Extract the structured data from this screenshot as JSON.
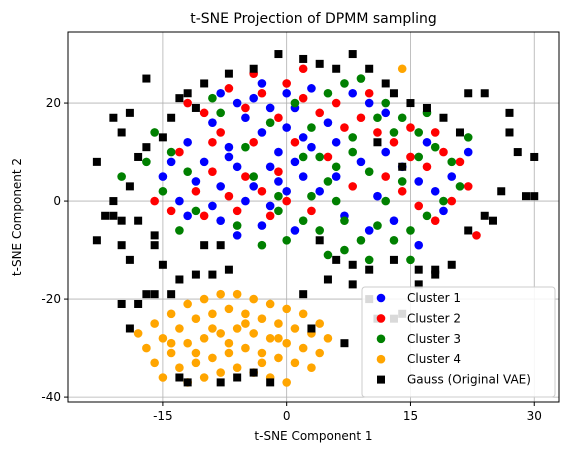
{
  "chart_data": {
    "type": "scatter",
    "title": "t-SNE Projection of DPMM sampling",
    "xlabel": "t-SNE Component 1",
    "ylabel": "t-SNE Component 2",
    "xlim": [
      -26.5,
      33.0
    ],
    "ylim": [
      -41.0,
      34.5
    ],
    "xticks": [
      -15,
      0,
      15,
      30
    ],
    "yticks": [
      -40,
      -20,
      0,
      20
    ],
    "grid": true,
    "legend_position": "lower-right",
    "series": [
      {
        "name": "Cluster 1",
        "color": "#0000ff",
        "marker": "circle",
        "points": [
          [
            -8,
            22
          ],
          [
            -6,
            20
          ],
          [
            -4,
            21
          ],
          [
            -2,
            19
          ],
          [
            0,
            22
          ],
          [
            1,
            19
          ],
          [
            -5,
            17
          ],
          [
            -9,
            16
          ],
          [
            -3,
            14
          ],
          [
            0,
            15
          ],
          [
            2,
            13
          ],
          [
            -12,
            12
          ],
          [
            -7,
            11
          ],
          [
            -1,
            10
          ],
          [
            3,
            11
          ],
          [
            -14,
            8
          ],
          [
            -10,
            8
          ],
          [
            -6,
            7
          ],
          [
            -2,
            7
          ],
          [
            1,
            8
          ],
          [
            -11,
            4
          ],
          [
            -8,
            3
          ],
          [
            -4,
            3
          ],
          [
            -1,
            4
          ],
          [
            2,
            5
          ],
          [
            -13,
            0
          ],
          [
            -9,
            -1
          ],
          [
            -5,
            0
          ],
          [
            -2,
            -1
          ],
          [
            0,
            2
          ],
          [
            -12,
            -3
          ],
          [
            -8,
            -4
          ],
          [
            -3,
            -5
          ],
          [
            1,
            -6
          ],
          [
            -6,
            -7
          ],
          [
            5,
            16
          ],
          [
            6,
            12
          ],
          [
            9,
            8
          ],
          [
            12,
            10
          ],
          [
            14,
            7
          ],
          [
            16,
            4
          ],
          [
            18,
            2
          ],
          [
            20,
            5
          ],
          [
            22,
            10
          ],
          [
            17,
            12
          ],
          [
            10,
            20
          ],
          [
            8,
            22
          ],
          [
            12,
            18
          ],
          [
            4,
            2
          ],
          [
            7,
            -3
          ],
          [
            10,
            -6
          ],
          [
            13,
            -4
          ],
          [
            16,
            -9
          ],
          [
            19,
            -2
          ],
          [
            11,
            1
          ],
          [
            -15,
            5
          ],
          [
            -3,
            24
          ],
          [
            3,
            23
          ],
          [
            -7,
            9
          ],
          [
            6,
            5
          ]
        ]
      },
      {
        "name": "Cluster 2",
        "color": "#ff0000",
        "marker": "circle",
        "points": [
          [
            -7,
            23
          ],
          [
            -3,
            22
          ],
          [
            0,
            24
          ],
          [
            2,
            21
          ],
          [
            -5,
            19
          ],
          [
            -10,
            18
          ],
          [
            -1,
            17
          ],
          [
            4,
            18
          ],
          [
            -8,
            14
          ],
          [
            -4,
            12
          ],
          [
            1,
            12
          ],
          [
            -13,
            10
          ],
          [
            -9,
            6
          ],
          [
            -5,
            5
          ],
          [
            -1,
            6
          ],
          [
            -11,
            2
          ],
          [
            -7,
            1
          ],
          [
            -3,
            2
          ],
          [
            -14,
            -2
          ],
          [
            -10,
            -3
          ],
          [
            -6,
            -2
          ],
          [
            -2,
            -3
          ],
          [
            6,
            20
          ],
          [
            9,
            17
          ],
          [
            11,
            14
          ],
          [
            13,
            12
          ],
          [
            15,
            9
          ],
          [
            17,
            7
          ],
          [
            19,
            10
          ],
          [
            21,
            8
          ],
          [
            12,
            5
          ],
          [
            14,
            2
          ],
          [
            16,
            -1
          ],
          [
            18,
            -4
          ],
          [
            23,
            -7
          ],
          [
            10,
            22
          ],
          [
            7,
            15
          ],
          [
            5,
            9
          ],
          [
            8,
            3
          ],
          [
            3,
            -2
          ],
          [
            -16,
            0
          ],
          [
            -4,
            26
          ],
          [
            2,
            27
          ],
          [
            -12,
            20
          ],
          [
            20,
            0
          ],
          [
            22,
            3
          ],
          [
            -9,
            12
          ],
          [
            0,
            0
          ],
          [
            15,
            15
          ],
          [
            18,
            14
          ]
        ]
      },
      {
        "name": "Cluster 3",
        "color": "#008000",
        "marker": "circle",
        "points": [
          [
            -16,
            14
          ],
          [
            -14,
            10
          ],
          [
            -12,
            6
          ],
          [
            -15,
            2
          ],
          [
            -11,
            -2
          ],
          [
            -13,
            -6
          ],
          [
            -8,
            18
          ],
          [
            -5,
            11
          ],
          [
            -2,
            16
          ],
          [
            1,
            20
          ],
          [
            3,
            15
          ],
          [
            4,
            9
          ],
          [
            5,
            4
          ],
          [
            6,
            0
          ],
          [
            2,
            -4
          ],
          [
            0,
            -8
          ],
          [
            4,
            -6
          ],
          [
            7,
            -10
          ],
          [
            9,
            -8
          ],
          [
            11,
            -5
          ],
          [
            13,
            -8
          ],
          [
            15,
            -6
          ],
          [
            17,
            -3
          ],
          [
            19,
            0
          ],
          [
            21,
            3
          ],
          [
            20,
            8
          ],
          [
            18,
            11
          ],
          [
            16,
            14
          ],
          [
            14,
            17
          ],
          [
            12,
            20
          ],
          [
            9,
            25
          ],
          [
            7,
            24
          ],
          [
            5,
            22
          ],
          [
            8,
            10
          ],
          [
            10,
            6
          ],
          [
            12,
            0
          ],
          [
            14,
            4
          ],
          [
            16,
            9
          ],
          [
            -6,
            -5
          ],
          [
            -3,
            -9
          ],
          [
            -20,
            5
          ],
          [
            -17,
            8
          ],
          [
            -1,
            1
          ],
          [
            3,
            1
          ],
          [
            7,
            -4
          ],
          [
            10,
            -12
          ],
          [
            -9,
            21
          ],
          [
            -4,
            5
          ],
          [
            -1,
            -2
          ],
          [
            6,
            7
          ],
          [
            13,
            14
          ],
          [
            17,
            18
          ],
          [
            11,
            17
          ],
          [
            8,
            13
          ],
          [
            5,
            -11
          ],
          [
            15,
            -12
          ],
          [
            22,
            13
          ],
          [
            2,
            9
          ]
        ]
      },
      {
        "name": "Cluster 4",
        "color": "#ffa500",
        "marker": "circle",
        "points": [
          [
            -18,
            -27
          ],
          [
            -16,
            -25
          ],
          [
            -14,
            -23
          ],
          [
            -12,
            -21
          ],
          [
            -10,
            -20
          ],
          [
            -8,
            -19
          ],
          [
            -6,
            -19
          ],
          [
            -4,
            -20
          ],
          [
            -2,
            -21
          ],
          [
            0,
            -22
          ],
          [
            2,
            -23
          ],
          [
            4,
            -25
          ],
          [
            -17,
            -30
          ],
          [
            -15,
            -28
          ],
          [
            -13,
            -26
          ],
          [
            -11,
            -24
          ],
          [
            -9,
            -23
          ],
          [
            -7,
            -22
          ],
          [
            -5,
            -23
          ],
          [
            -3,
            -24
          ],
          [
            -1,
            -25
          ],
          [
            1,
            -26
          ],
          [
            3,
            -27
          ],
          [
            5,
            -28
          ],
          [
            -16,
            -33
          ],
          [
            -14,
            -31
          ],
          [
            -12,
            -29
          ],
          [
            -10,
            -28
          ],
          [
            -8,
            -27
          ],
          [
            -6,
            -26
          ],
          [
            -4,
            -27
          ],
          [
            -2,
            -28
          ],
          [
            0,
            -29
          ],
          [
            2,
            -30
          ],
          [
            4,
            -31
          ],
          [
            -15,
            -36
          ],
          [
            -13,
            -34
          ],
          [
            -11,
            -33
          ],
          [
            -9,
            -32
          ],
          [
            -7,
            -31
          ],
          [
            -5,
            -30
          ],
          [
            -3,
            -31
          ],
          [
            -1,
            -32
          ],
          [
            1,
            -33
          ],
          [
            3,
            -34
          ],
          [
            -12,
            -37
          ],
          [
            -10,
            -36
          ],
          [
            -8,
            -35
          ],
          [
            -6,
            -34
          ],
          [
            -4,
            -35
          ],
          [
            -2,
            -36
          ],
          [
            0,
            -37
          ],
          [
            -14,
            -29
          ],
          [
            -9,
            -26
          ],
          [
            -5,
            -25
          ],
          [
            -1,
            -28
          ],
          [
            -11,
            -31
          ],
          [
            -7,
            -29
          ],
          [
            -3,
            -33
          ],
          [
            14,
            27
          ]
        ]
      },
      {
        "name": "Gauss (Original VAE)",
        "color": "#000000",
        "marker": "square",
        "points": [
          [
            -23,
            8
          ],
          [
            -21,
            17
          ],
          [
            -20,
            14
          ],
          [
            -21,
            0
          ],
          [
            -19,
            3
          ],
          [
            -19,
            18
          ],
          [
            -18,
            9
          ],
          [
            -17,
            11
          ],
          [
            -17,
            25
          ],
          [
            -15,
            13
          ],
          [
            -13,
            21
          ],
          [
            -12,
            22
          ],
          [
            -10,
            24
          ],
          [
            -7,
            26
          ],
          [
            -4,
            27
          ],
          [
            -1,
            30
          ],
          [
            2,
            29
          ],
          [
            4,
            28
          ],
          [
            6,
            27
          ],
          [
            8,
            30
          ],
          [
            10,
            27
          ],
          [
            12,
            24
          ],
          [
            13,
            22
          ],
          [
            15,
            20
          ],
          [
            17,
            19
          ],
          [
            19,
            17
          ],
          [
            21,
            14
          ],
          [
            22,
            22
          ],
          [
            24,
            22
          ],
          [
            27,
            14
          ],
          [
            28,
            10
          ],
          [
            29,
            1
          ],
          [
            30,
            1
          ],
          [
            26,
            2
          ],
          [
            24,
            -3
          ],
          [
            25,
            -4
          ],
          [
            22,
            -6
          ],
          [
            20,
            -13
          ],
          [
            18,
            -14
          ],
          [
            16,
            -14
          ],
          [
            13,
            -12
          ],
          [
            10,
            -14
          ],
          [
            8,
            -13
          ],
          [
            6,
            -12
          ],
          [
            4,
            -8
          ],
          [
            -21,
            -3
          ],
          [
            -20,
            -4
          ],
          [
            -18,
            -4
          ],
          [
            -16,
            -7
          ],
          [
            -16,
            -9
          ],
          [
            -15,
            -13
          ],
          [
            -13,
            -16
          ],
          [
            -11,
            -15
          ],
          [
            -9,
            -15
          ],
          [
            -8,
            -9
          ],
          [
            -10,
            -9
          ],
          [
            -7,
            -14
          ],
          [
            -20,
            -9
          ],
          [
            -19,
            -12
          ],
          [
            -18,
            -21
          ],
          [
            -16,
            -19
          ],
          [
            -14,
            -19
          ],
          [
            -20,
            -21
          ],
          [
            -17,
            -19
          ],
          [
            -13,
            -36
          ],
          [
            -12,
            -37
          ],
          [
            -8,
            -37
          ],
          [
            -6,
            -36
          ],
          [
            -4,
            -35
          ],
          [
            5,
            -16
          ],
          [
            8,
            -17
          ],
          [
            10,
            -20
          ],
          [
            11,
            -24
          ],
          [
            13,
            -24
          ],
          [
            14,
            -23
          ],
          [
            3,
            -26
          ],
          [
            7,
            -29
          ],
          [
            -2,
            -37
          ],
          [
            14,
            7
          ],
          [
            11,
            12
          ],
          [
            -11,
            19
          ],
          [
            -14,
            17
          ],
          [
            -22,
            -3
          ],
          [
            -23,
            -8
          ],
          [
            -19,
            -26
          ],
          [
            27,
            18
          ],
          [
            30,
            9
          ],
          [
            16,
            -17
          ],
          [
            18,
            -15
          ],
          [
            2,
            -19
          ]
        ]
      }
    ]
  }
}
